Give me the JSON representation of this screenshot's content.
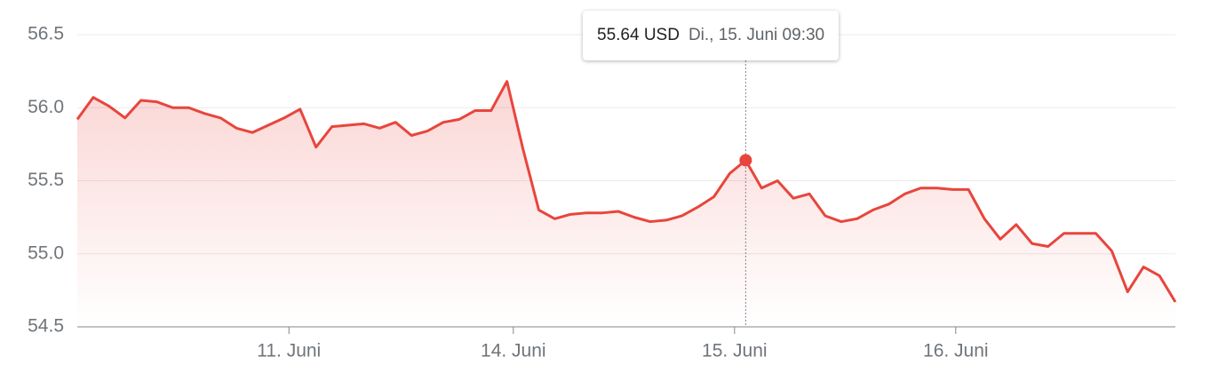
{
  "chart_data": {
    "type": "line",
    "x": [
      0,
      1,
      2,
      3,
      4,
      5,
      6,
      7,
      8,
      9,
      10,
      11,
      12,
      13,
      14,
      15,
      16,
      17,
      18,
      19,
      20,
      21,
      22,
      23,
      24,
      25,
      26,
      27,
      28,
      29,
      30,
      31,
      32,
      33,
      34,
      35,
      36,
      37,
      38,
      39,
      40,
      41,
      42,
      43,
      44,
      45,
      46,
      47,
      48,
      49,
      50,
      51,
      52,
      53,
      54,
      55,
      56,
      57,
      58,
      59,
      60,
      61,
      62,
      63,
      64,
      65,
      66,
      67,
      68,
      69
    ],
    "series": [
      {
        "name": "USD",
        "color": "#e8453c",
        "values": [
          55.92,
          56.07,
          56.01,
          55.93,
          56.05,
          56.04,
          56.0,
          56.0,
          55.96,
          55.93,
          55.86,
          55.83,
          55.88,
          55.93,
          55.99,
          55.73,
          55.87,
          55.88,
          55.89,
          55.86,
          55.9,
          55.81,
          55.84,
          55.9,
          55.92,
          55.98,
          55.98,
          56.18,
          55.72,
          55.3,
          55.24,
          55.27,
          55.28,
          55.28,
          55.29,
          55.25,
          55.22,
          55.23,
          55.26,
          55.32,
          55.39,
          55.55,
          55.64,
          55.45,
          55.5,
          55.38,
          55.41,
          55.26,
          55.22,
          55.24,
          55.3,
          55.34,
          55.41,
          55.45,
          55.45,
          55.44,
          55.44,
          55.24,
          55.1,
          55.2,
          55.07,
          55.05,
          55.14,
          55.14,
          55.14,
          55.02,
          54.74,
          54.91,
          54.85,
          54.67
        ]
      }
    ],
    "xlim": [
      0,
      69
    ],
    "xticks": [
      {
        "value": 13.3,
        "label": "11. Juni"
      },
      {
        "value": 27.4,
        "label": "14. Juni"
      },
      {
        "value": 41.3,
        "label": "15. Juni"
      },
      {
        "value": 55.2,
        "label": "16. Juni"
      }
    ],
    "ylim": [
      54.5,
      56.5
    ],
    "yticks": [
      54.5,
      {
        "value": 55,
        "label": "55.0"
      },
      55.5,
      {
        "value": 56,
        "label": "56.0"
      },
      56.5
    ],
    "grid": true,
    "tooltip": {
      "value": 55.64,
      "label": "55.64 USD",
      "time": "Di., 15. Juni 09:30"
    }
  }
}
